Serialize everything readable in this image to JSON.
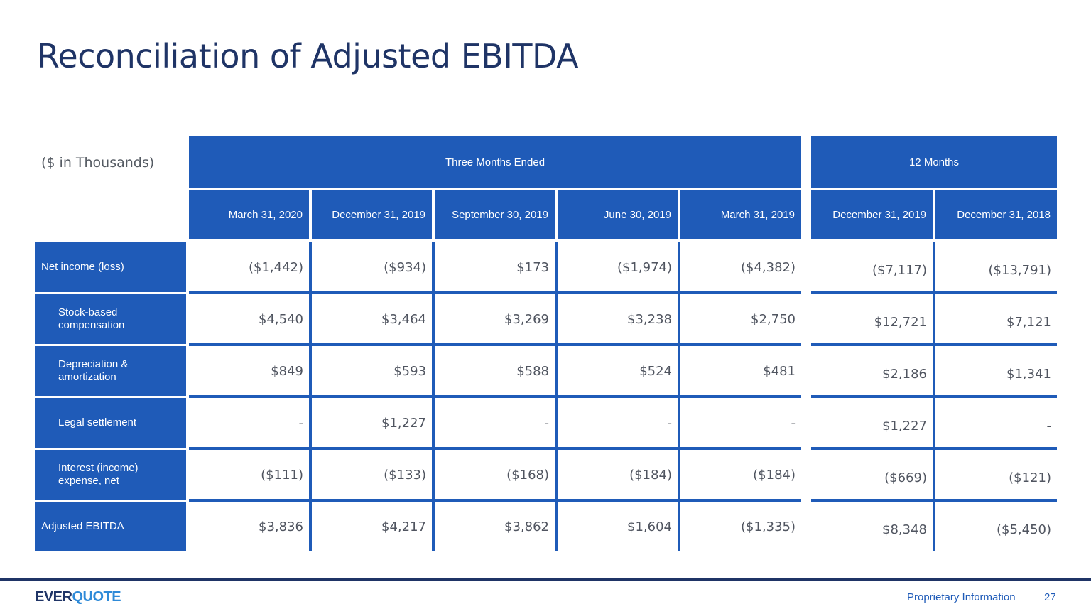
{
  "page": {
    "title": "Reconciliation of Adjusted EBITDA",
    "units_label": "($ in Thousands)"
  },
  "table": {
    "groups": [
      "Three Months Ended",
      "12 Months"
    ],
    "columns": [
      "March 31, 2020",
      "December 31, 2019",
      "September 30, 2019",
      "June 30, 2019",
      "March 31, 2019",
      "December 31, 2019",
      "December 31, 2018"
    ],
    "rows": [
      {
        "label": "Net income (loss)",
        "values": [
          "($1,442)",
          "($934)",
          "$173",
          "($1,974)",
          "($4,382)",
          "($7,117)",
          "($13,791)"
        ]
      },
      {
        "label": "Stock-based compensation",
        "values": [
          "$4,540",
          "$3,464",
          "$3,269",
          "$3,238",
          "$2,750",
          "$12,721",
          "$7,121"
        ]
      },
      {
        "label": "Depreciation & amortization",
        "values": [
          "$849",
          "$593",
          "$588",
          "$524",
          "$481",
          "$2,186",
          "$1,341"
        ]
      },
      {
        "label": "Legal settlement",
        "values": [
          "-",
          "$1,227",
          "-",
          "-",
          "-",
          "$1,227",
          "-"
        ]
      },
      {
        "label": "Interest (income) expense, net",
        "values": [
          "($111)",
          "($133)",
          "($168)",
          "($184)",
          "($184)",
          "($669)",
          "($121)"
        ]
      },
      {
        "label": "Adjusted EBITDA",
        "values": [
          "$3,836",
          "$4,217",
          "$3,862",
          "$1,604",
          "($1,335)",
          "$8,348",
          "($5,450)"
        ]
      }
    ]
  },
  "footer": {
    "logo_part1": "EVER",
    "logo_part2": "QUOTE",
    "proprietary": "Proprietary Information",
    "page_number": "27"
  },
  "colors": {
    "header_blue": "#1f5bb8",
    "title_navy": "#1f3466",
    "logo_light_blue": "#2e8ad8"
  }
}
